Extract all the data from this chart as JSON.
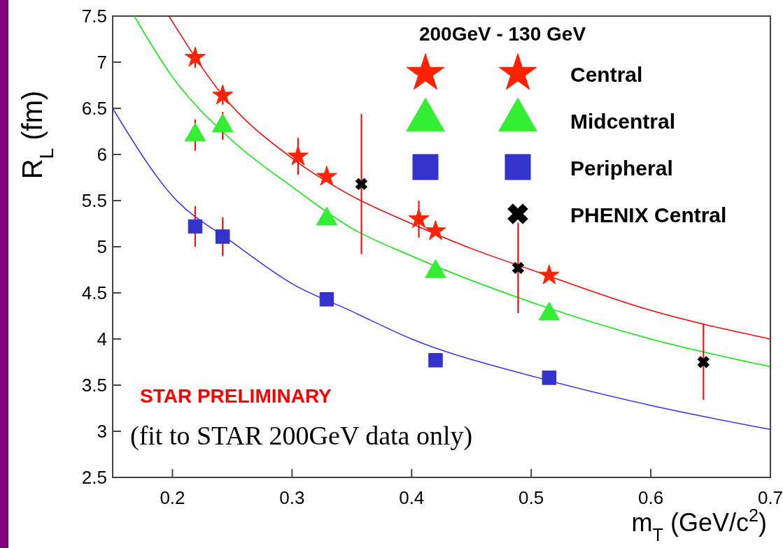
{
  "chart_data": {
    "type": "scatter",
    "xlabel": "m$_{T}$ (GeV/c$^{2}$)",
    "ylabel": "R$_{L}$ (fm)",
    "legend_title": "200GeV - 130 GeV",
    "legend": "top right",
    "xlim": [
      0.15,
      0.7
    ],
    "ylim": [
      2.5,
      7.5
    ],
    "xticks": [
      0.2,
      0.3,
      0.4,
      0.5,
      0.6,
      0.7
    ],
    "yticks": [
      2.5,
      3,
      3.5,
      4,
      4.5,
      5,
      5.5,
      6,
      6.5,
      7,
      7.5
    ],
    "grid": false,
    "annotations": [
      "STAR PRELIMINARY",
      "(fit to STAR 200GeV data only)"
    ],
    "series": [
      {
        "name": "Central",
        "marker": "star",
        "color": "#ff2200",
        "x": [
          0.242,
          0.329,
          0.42,
          0.515
        ],
        "values": [
          6.64,
          5.76,
          5.17,
          4.69
        ],
        "errors": [
          0.1,
          null,
          null,
          null
        ]
      },
      {
        "marker": "star",
        "color": "#ff2200",
        "x": [
          0.219,
          0.305,
          0.406
        ],
        "values": [
          7.05,
          5.98,
          5.3
        ],
        "errors": [
          0.11,
          0.2,
          0.2
        ]
      },
      {
        "name": "Midcentral",
        "marker": "triangle",
        "color": "#33ee33",
        "x": [
          0.242,
          0.329,
          0.42,
          0.515
        ],
        "values": [
          6.31,
          5.3,
          4.73,
          4.27
        ],
        "errors": [
          0.15,
          null,
          null,
          null
        ]
      },
      {
        "marker": "triangle",
        "color": "#33ee33",
        "x": [
          0.219
        ],
        "values": [
          6.21
        ],
        "errors": [
          0.17
        ]
      },
      {
        "name": "Peripheral",
        "marker": "square",
        "color": "#3333cc",
        "x": [
          0.242,
          0.329,
          0.42,
          0.515
        ],
        "values": [
          5.11,
          4.43,
          3.77,
          3.58
        ],
        "errors": [
          0.21,
          null,
          null,
          null
        ]
      },
      {
        "marker": "square",
        "color": "#3333cc",
        "x": [
          0.219
        ],
        "values": [
          5.22
        ],
        "errors": [
          0.22
        ]
      },
      {
        "name": "PHENIX Central",
        "marker": "cross",
        "color": "#000000",
        "x": [
          0.358,
          0.489,
          0.644
        ],
        "values": [
          5.68,
          4.77,
          3.75
        ],
        "errors": [
          0.76,
          0.49,
          0.41
        ]
      },
      {
        "type": "line",
        "color": "#ff0000",
        "x": [
          0.197,
          0.242,
          0.3,
          0.35,
          0.4,
          0.45,
          0.5,
          0.6,
          0.7
        ],
        "values": [
          7.5,
          6.64,
          5.96,
          5.55,
          5.25,
          4.98,
          4.75,
          4.31,
          4.0
        ]
      },
      {
        "type": "line",
        "color": "#00ee00",
        "x": [
          0.168,
          0.2,
          0.25,
          0.3,
          0.35,
          0.4,
          0.5,
          0.6,
          0.7
        ],
        "values": [
          7.5,
          6.84,
          6.15,
          5.65,
          5.2,
          4.9,
          4.4,
          4.0,
          3.7
        ]
      },
      {
        "type": "line",
        "color": "#3333ff",
        "x": [
          0.15,
          0.2,
          0.25,
          0.3,
          0.35,
          0.4,
          0.5,
          0.6,
          0.7
        ],
        "values": [
          6.5,
          5.55,
          5.05,
          4.6,
          4.3,
          4.0,
          3.6,
          3.28,
          3.02
        ]
      }
    ]
  }
}
